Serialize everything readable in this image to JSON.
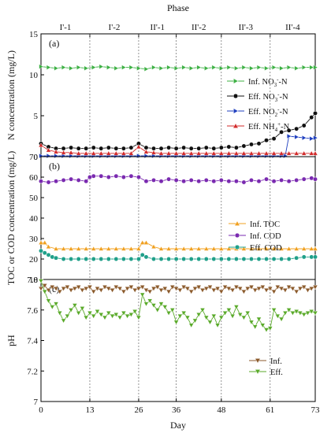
{
  "figure": {
    "phase_title": "Phase",
    "x_label": "Day",
    "x_ticks": [
      0,
      13,
      26,
      36,
      48,
      61,
      73
    ],
    "phases": [
      {
        "label": "I'-1",
        "start": 0,
        "end": 13
      },
      {
        "label": "I'-2",
        "start": 13,
        "end": 26
      },
      {
        "label": "II'-1",
        "start": 26,
        "end": 36
      },
      {
        "label": "II'-2",
        "start": 36,
        "end": 48
      },
      {
        "label": "II'-3",
        "start": 48,
        "end": 61
      },
      {
        "label": "II'-4",
        "start": 61,
        "end": 73
      }
    ]
  },
  "chart_data": [
    {
      "type": "line",
      "panel_label": "(a)",
      "ylabel": "N concentration (mg/L)",
      "ylim": [
        0,
        15
      ],
      "yticks": [
        0,
        5,
        10,
        15
      ],
      "legend_position": "right",
      "series": [
        {
          "name": "Inf. NO3--N",
          "legend_main": "Inf. NO",
          "legend_sub": "3",
          "legend_sup": "-",
          "legend_tail": "-N",
          "color": "#3cb043",
          "marker": "triangle-right",
          "x": [
            0,
            2,
            4,
            6,
            8,
            10,
            12,
            14,
            16,
            18,
            20,
            22,
            24,
            26,
            28,
            30,
            32,
            34,
            36,
            38,
            40,
            42,
            44,
            46,
            48,
            50,
            52,
            54,
            56,
            58,
            60,
            62,
            64,
            66,
            68,
            70,
            72,
            73
          ],
          "values": [
            11.0,
            10.9,
            10.8,
            10.9,
            10.8,
            10.9,
            10.8,
            10.9,
            11.0,
            10.9,
            10.8,
            10.9,
            10.9,
            10.8,
            10.7,
            10.9,
            10.8,
            10.9,
            10.8,
            10.9,
            10.8,
            10.9,
            10.8,
            10.9,
            10.8,
            10.9,
            10.8,
            10.9,
            10.8,
            10.9,
            10.8,
            10.9,
            10.8,
            10.9,
            10.8,
            10.9,
            10.9,
            10.9
          ]
        },
        {
          "name": "Eff. NO3--N",
          "legend_main": "Eff. NO",
          "legend_sub": "3",
          "legend_sup": "-",
          "legend_tail": "-N",
          "color": "#111111",
          "marker": "circle-half",
          "x": [
            0,
            2,
            4,
            6,
            8,
            10,
            12,
            14,
            16,
            18,
            20,
            22,
            24,
            26,
            28,
            30,
            32,
            34,
            36,
            38,
            40,
            42,
            44,
            46,
            48,
            50,
            52,
            54,
            56,
            58,
            60,
            62,
            64,
            66,
            68,
            70,
            72,
            73
          ],
          "values": [
            1.6,
            1.2,
            1.0,
            1.0,
            1.1,
            1.0,
            1.0,
            1.1,
            1.0,
            1.1,
            1.0,
            1.0,
            1.1,
            1.6,
            1.1,
            1.0,
            1.0,
            1.1,
            1.0,
            1.1,
            1.0,
            1.0,
            1.1,
            1.0,
            1.1,
            1.2,
            1.1,
            1.3,
            1.5,
            1.6,
            2.0,
            2.2,
            3.0,
            3.2,
            3.4,
            3.8,
            4.8,
            5.3
          ]
        },
        {
          "name": "Eff. NO2--N",
          "legend_main": "Eff. NO",
          "legend_sub": "2",
          "legend_sup": "-",
          "legend_tail": "-N",
          "color": "#1f3fbf",
          "marker": "triangle-right",
          "x": [
            0,
            2,
            4,
            6,
            8,
            10,
            12,
            14,
            16,
            18,
            20,
            22,
            24,
            26,
            28,
            30,
            32,
            34,
            36,
            38,
            40,
            42,
            44,
            46,
            48,
            50,
            52,
            54,
            56,
            58,
            60,
            62,
            64,
            65,
            66,
            68,
            70,
            72,
            73
          ],
          "values": [
            0.1,
            0.1,
            0.1,
            0.1,
            0.1,
            0.1,
            0.1,
            0.1,
            0.1,
            0.1,
            0.1,
            0.1,
            0.1,
            0.1,
            0.1,
            0.1,
            0.1,
            0.1,
            0.1,
            0.1,
            0.1,
            0.1,
            0.1,
            0.1,
            0.1,
            0.1,
            0.1,
            0.1,
            0.1,
            0.1,
            0.1,
            0.1,
            0.1,
            0.1,
            2.5,
            2.4,
            2.3,
            2.2,
            2.3
          ]
        },
        {
          "name": "Eff. NH4+-N",
          "legend_main": "Eff. NH",
          "legend_sub": "4",
          "legend_sup": "+",
          "legend_tail": "-N",
          "color": "#d22a2a",
          "marker": "triangle-up",
          "x": [
            0,
            2,
            4,
            6,
            8,
            10,
            12,
            14,
            16,
            18,
            20,
            22,
            24,
            26,
            28,
            30,
            32,
            34,
            36,
            38,
            40,
            42,
            44,
            46,
            48,
            50,
            52,
            54,
            56,
            58,
            60,
            62,
            64,
            66,
            68,
            70,
            72,
            73
          ],
          "values": [
            1.4,
            0.8,
            0.6,
            0.5,
            0.5,
            0.4,
            0.4,
            0.4,
            0.4,
            0.4,
            0.4,
            0.4,
            0.4,
            1.2,
            0.6,
            0.5,
            0.4,
            0.4,
            0.4,
            0.4,
            0.4,
            0.4,
            0.4,
            0.4,
            0.4,
            0.4,
            0.4,
            0.4,
            0.4,
            0.4,
            0.4,
            0.4,
            0.4,
            0.4,
            0.4,
            0.4,
            0.4,
            0.4
          ]
        }
      ]
    },
    {
      "type": "line",
      "panel_label": "(b)",
      "ylabel": "TOC or COD concentration (mg/L)",
      "ylim": [
        10,
        70
      ],
      "yticks": [
        10,
        20,
        30,
        40,
        50,
        60,
        70
      ],
      "legend_position": "right",
      "series": [
        {
          "name": "Inf. TOC",
          "color": "#f0a020",
          "marker": "triangle-up",
          "x": [
            0,
            1,
            2,
            4,
            6,
            8,
            10,
            12,
            14,
            16,
            18,
            20,
            22,
            24,
            26,
            27,
            28,
            30,
            32,
            34,
            36,
            38,
            40,
            42,
            44,
            46,
            48,
            50,
            52,
            54,
            56,
            58,
            60,
            62,
            64,
            66,
            68,
            70,
            72,
            73
          ],
          "values": [
            28,
            28,
            26,
            25,
            25,
            25,
            25,
            25,
            25,
            25,
            25,
            25,
            25,
            25,
            25,
            28,
            28,
            26,
            25,
            25,
            25,
            25,
            25,
            25,
            25,
            25,
            25,
            25,
            25,
            25,
            25,
            25,
            25,
            25,
            25,
            25,
            25,
            25,
            25,
            25
          ]
        },
        {
          "name": "Inf. COD",
          "color": "#7a2ab0",
          "marker": "circle",
          "x": [
            0,
            2,
            4,
            6,
            8,
            10,
            12,
            13,
            14,
            16,
            18,
            20,
            22,
            24,
            26,
            28,
            30,
            32,
            34,
            36,
            38,
            40,
            42,
            44,
            46,
            48,
            50,
            52,
            54,
            56,
            58,
            60,
            62,
            64,
            66,
            68,
            70,
            72,
            73
          ],
          "values": [
            58,
            57.5,
            58,
            58.5,
            59,
            58.5,
            58,
            60,
            60.5,
            60.5,
            60,
            60.5,
            60,
            60.5,
            60,
            58,
            58.5,
            58,
            59,
            58.5,
            58,
            58.5,
            58,
            58.5,
            58,
            58.5,
            58,
            58,
            57.5,
            58.5,
            58,
            59,
            58,
            58.5,
            58,
            58.5,
            59,
            59.5,
            59
          ]
        },
        {
          "name": "Eff. COD",
          "color": "#20a08a",
          "marker": "circle",
          "x": [
            0,
            1,
            2,
            3,
            4,
            6,
            8,
            10,
            12,
            14,
            16,
            18,
            20,
            22,
            24,
            26,
            27,
            28,
            30,
            32,
            34,
            36,
            38,
            40,
            42,
            44,
            46,
            48,
            50,
            52,
            54,
            56,
            58,
            60,
            62,
            64,
            66,
            68,
            70,
            72,
            73
          ],
          "values": [
            24,
            23,
            22,
            21,
            20.5,
            20,
            20,
            20,
            20,
            20,
            20,
            20,
            20,
            20,
            20,
            20,
            22,
            21,
            20,
            20,
            20,
            20,
            20,
            20,
            20,
            20,
            20,
            20,
            20,
            20,
            20,
            20,
            20,
            20,
            20,
            20,
            20,
            20.5,
            21,
            21,
            21
          ]
        }
      ]
    },
    {
      "type": "line",
      "panel_label": "(c)",
      "ylabel": "pH",
      "ylim": [
        7.0,
        7.8
      ],
      "yticks": [
        7.0,
        7.2,
        7.4,
        7.6,
        7.8
      ],
      "legend_position": "right",
      "series": [
        {
          "name": "Inf.",
          "color": "#8b5a2b",
          "marker": "triangle-down",
          "x": [
            0,
            1,
            2,
            3,
            4,
            5,
            6,
            7,
            8,
            9,
            10,
            11,
            12,
            13,
            14,
            15,
            16,
            17,
            18,
            19,
            20,
            21,
            22,
            23,
            24,
            25,
            26,
            27,
            28,
            29,
            30,
            31,
            32,
            33,
            34,
            35,
            36,
            37,
            38,
            39,
            40,
            41,
            42,
            43,
            44,
            45,
            46,
            47,
            48,
            49,
            50,
            51,
            52,
            53,
            54,
            55,
            56,
            57,
            58,
            59,
            60,
            61,
            62,
            63,
            64,
            65,
            66,
            67,
            68,
            69,
            70,
            71,
            72,
            73
          ],
          "values": [
            7.74,
            7.76,
            7.73,
            7.75,
            7.74,
            7.72,
            7.74,
            7.75,
            7.73,
            7.74,
            7.75,
            7.73,
            7.74,
            7.75,
            7.72,
            7.74,
            7.73,
            7.75,
            7.74,
            7.73,
            7.75,
            7.74,
            7.72,
            7.74,
            7.75,
            7.73,
            7.74,
            7.75,
            7.73,
            7.72,
            7.74,
            7.75,
            7.73,
            7.74,
            7.72,
            7.75,
            7.74,
            7.73,
            7.75,
            7.74,
            7.72,
            7.74,
            7.75,
            7.73,
            7.74,
            7.75,
            7.73,
            7.74,
            7.72,
            7.75,
            7.74,
            7.73,
            7.75,
            7.74,
            7.72,
            7.74,
            7.75,
            7.73,
            7.74,
            7.75,
            7.73,
            7.74,
            7.72,
            7.75,
            7.74,
            7.73,
            7.75,
            7.74,
            7.72,
            7.74,
            7.75,
            7.73,
            7.74,
            7.75
          ]
        },
        {
          "name": "Eff.",
          "color": "#5aaa2a",
          "marker": "triangle-down",
          "x": [
            0,
            1,
            2,
            3,
            4,
            5,
            6,
            7,
            8,
            9,
            10,
            11,
            12,
            13,
            14,
            15,
            16,
            17,
            18,
            19,
            20,
            21,
            22,
            23,
            24,
            25,
            26,
            27,
            28,
            29,
            30,
            31,
            32,
            33,
            34,
            35,
            36,
            37,
            38,
            39,
            40,
            41,
            42,
            43,
            44,
            45,
            46,
            47,
            48,
            49,
            50,
            51,
            52,
            53,
            54,
            55,
            56,
            57,
            58,
            59,
            60,
            61,
            62,
            63,
            64,
            65,
            66,
            67,
            68,
            69,
            70,
            71,
            72,
            73
          ],
          "values": [
            7.79,
            7.72,
            7.66,
            7.62,
            7.64,
            7.58,
            7.53,
            7.56,
            7.6,
            7.63,
            7.58,
            7.61,
            7.55,
            7.58,
            7.56,
            7.59,
            7.57,
            7.55,
            7.58,
            7.56,
            7.57,
            7.55,
            7.58,
            7.56,
            7.57,
            7.59,
            7.55,
            7.7,
            7.64,
            7.66,
            7.63,
            7.6,
            7.64,
            7.62,
            7.58,
            7.6,
            7.52,
            7.56,
            7.58,
            7.55,
            7.5,
            7.53,
            7.57,
            7.6,
            7.55,
            7.52,
            7.56,
            7.5,
            7.55,
            7.58,
            7.6,
            7.56,
            7.62,
            7.57,
            7.55,
            7.58,
            7.52,
            7.49,
            7.54,
            7.5,
            7.47,
            7.48,
            7.6,
            7.56,
            7.54,
            7.58,
            7.6,
            7.58,
            7.59,
            7.58,
            7.57,
            7.58,
            7.59,
            7.58
          ]
        }
      ]
    }
  ]
}
